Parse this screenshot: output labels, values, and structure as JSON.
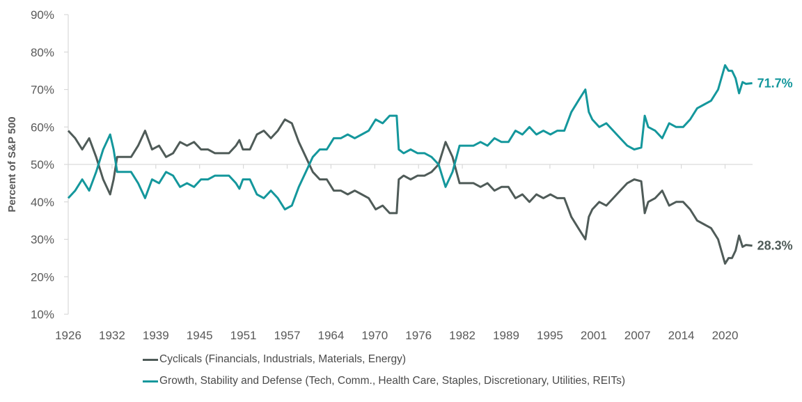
{
  "chart_data": {
    "type": "line",
    "title": "",
    "xlabel": "",
    "ylabel": "Percent of S&P 500",
    "ylim": [
      10,
      90
    ],
    "y_ticks": [
      "10%",
      "20%",
      "30%",
      "40%",
      "50%",
      "60%",
      "70%",
      "80%",
      "90%"
    ],
    "x_ticks": [
      "1926",
      "1932",
      "1939",
      "1945",
      "1951",
      "1957",
      "1964",
      "1970",
      "1976",
      "1982",
      "1989",
      "1995",
      "2001",
      "2007",
      "2014",
      "2020"
    ],
    "x_axis_crosses_at": 50,
    "grid": false,
    "legend_position": "bottom",
    "x": [
      1926,
      1927,
      1928,
      1929,
      1930,
      1931,
      1932,
      1932.5,
      1933,
      1934,
      1935,
      1936,
      1937,
      1938,
      1939,
      1940,
      1941,
      1942,
      1943,
      1944,
      1945,
      1946,
      1947,
      1948,
      1949,
      1950,
      1950.5,
      1951,
      1952,
      1953,
      1954,
      1955,
      1956,
      1957,
      1958,
      1959,
      1960,
      1961,
      1962,
      1963,
      1964,
      1965,
      1966,
      1967,
      1968,
      1969,
      1970,
      1971,
      1972,
      1973,
      1973.3,
      1974,
      1975,
      1976,
      1977,
      1978,
      1979,
      1980,
      1981,
      1982,
      1983,
      1984,
      1985,
      1986,
      1987,
      1988,
      1989,
      1990,
      1991,
      1992,
      1993,
      1994,
      1995,
      1996,
      1997,
      1998,
      1999,
      2000,
      2000.5,
      2001,
      2002,
      2003,
      2004,
      2005,
      2006,
      2007,
      2008,
      2008.5,
      2009,
      2010,
      2011,
      2012,
      2013,
      2014,
      2015,
      2016,
      2017,
      2018,
      2019,
      2020,
      2020.5,
      2021,
      2021.5,
      2022,
      2022.5,
      2023,
      2023.9
    ],
    "series": [
      {
        "name": "Cyclicals (Financials, Industrials, Materials, Energy)",
        "color": "#4f5b58",
        "end_label": "28.3%",
        "values": [
          59,
          57,
          54,
          57,
          52,
          46,
          42,
          46,
          52,
          52,
          52,
          55,
          59,
          54,
          55,
          52,
          53,
          56,
          55,
          56,
          54,
          54,
          53,
          53,
          53,
          55,
          56.5,
          54,
          54,
          58,
          59,
          57,
          59,
          62,
          61,
          56,
          52,
          48,
          46,
          46,
          43,
          43,
          42,
          43,
          42,
          41,
          38,
          39,
          37,
          37,
          46,
          47,
          46,
          47,
          47,
          48,
          50,
          56,
          52,
          45,
          45,
          45,
          44,
          45,
          43,
          44,
          44,
          41,
          42,
          40,
          42,
          41,
          42,
          41,
          41,
          36,
          33,
          30,
          36,
          38,
          40,
          39,
          41,
          43,
          45,
          46,
          45.5,
          37,
          40,
          41,
          43,
          39,
          40,
          40,
          38,
          35,
          34,
          33,
          30,
          23.5,
          25,
          25,
          27,
          31,
          28,
          28.5,
          28.3
        ]
      },
      {
        "name": "Growth, Stability and Defense (Tech, Comm., Health Care, Staples, Discretionary, Utilities, REITs)",
        "color": "#14979c",
        "end_label": "71.7%",
        "values": [
          41,
          43,
          46,
          43,
          48,
          54,
          58,
          54,
          48,
          48,
          48,
          45,
          41,
          46,
          45,
          48,
          47,
          44,
          45,
          44,
          46,
          46,
          47,
          47,
          47,
          45,
          43.5,
          46,
          46,
          42,
          41,
          43,
          41,
          38,
          39,
          44,
          48,
          52,
          54,
          54,
          57,
          57,
          58,
          57,
          58,
          59,
          62,
          61,
          63,
          63,
          54,
          53,
          54,
          53,
          53,
          52,
          50,
          44,
          48,
          55,
          55,
          55,
          56,
          55,
          57,
          56,
          56,
          59,
          58,
          60,
          58,
          59,
          58,
          59,
          59,
          64,
          67,
          70,
          64,
          62,
          60,
          61,
          59,
          57,
          55,
          54,
          54.5,
          63,
          60,
          59,
          57,
          61,
          60,
          60,
          62,
          65,
          66,
          67,
          70,
          76.5,
          75,
          75,
          73,
          69,
          72,
          71.5,
          71.7
        ]
      }
    ]
  }
}
